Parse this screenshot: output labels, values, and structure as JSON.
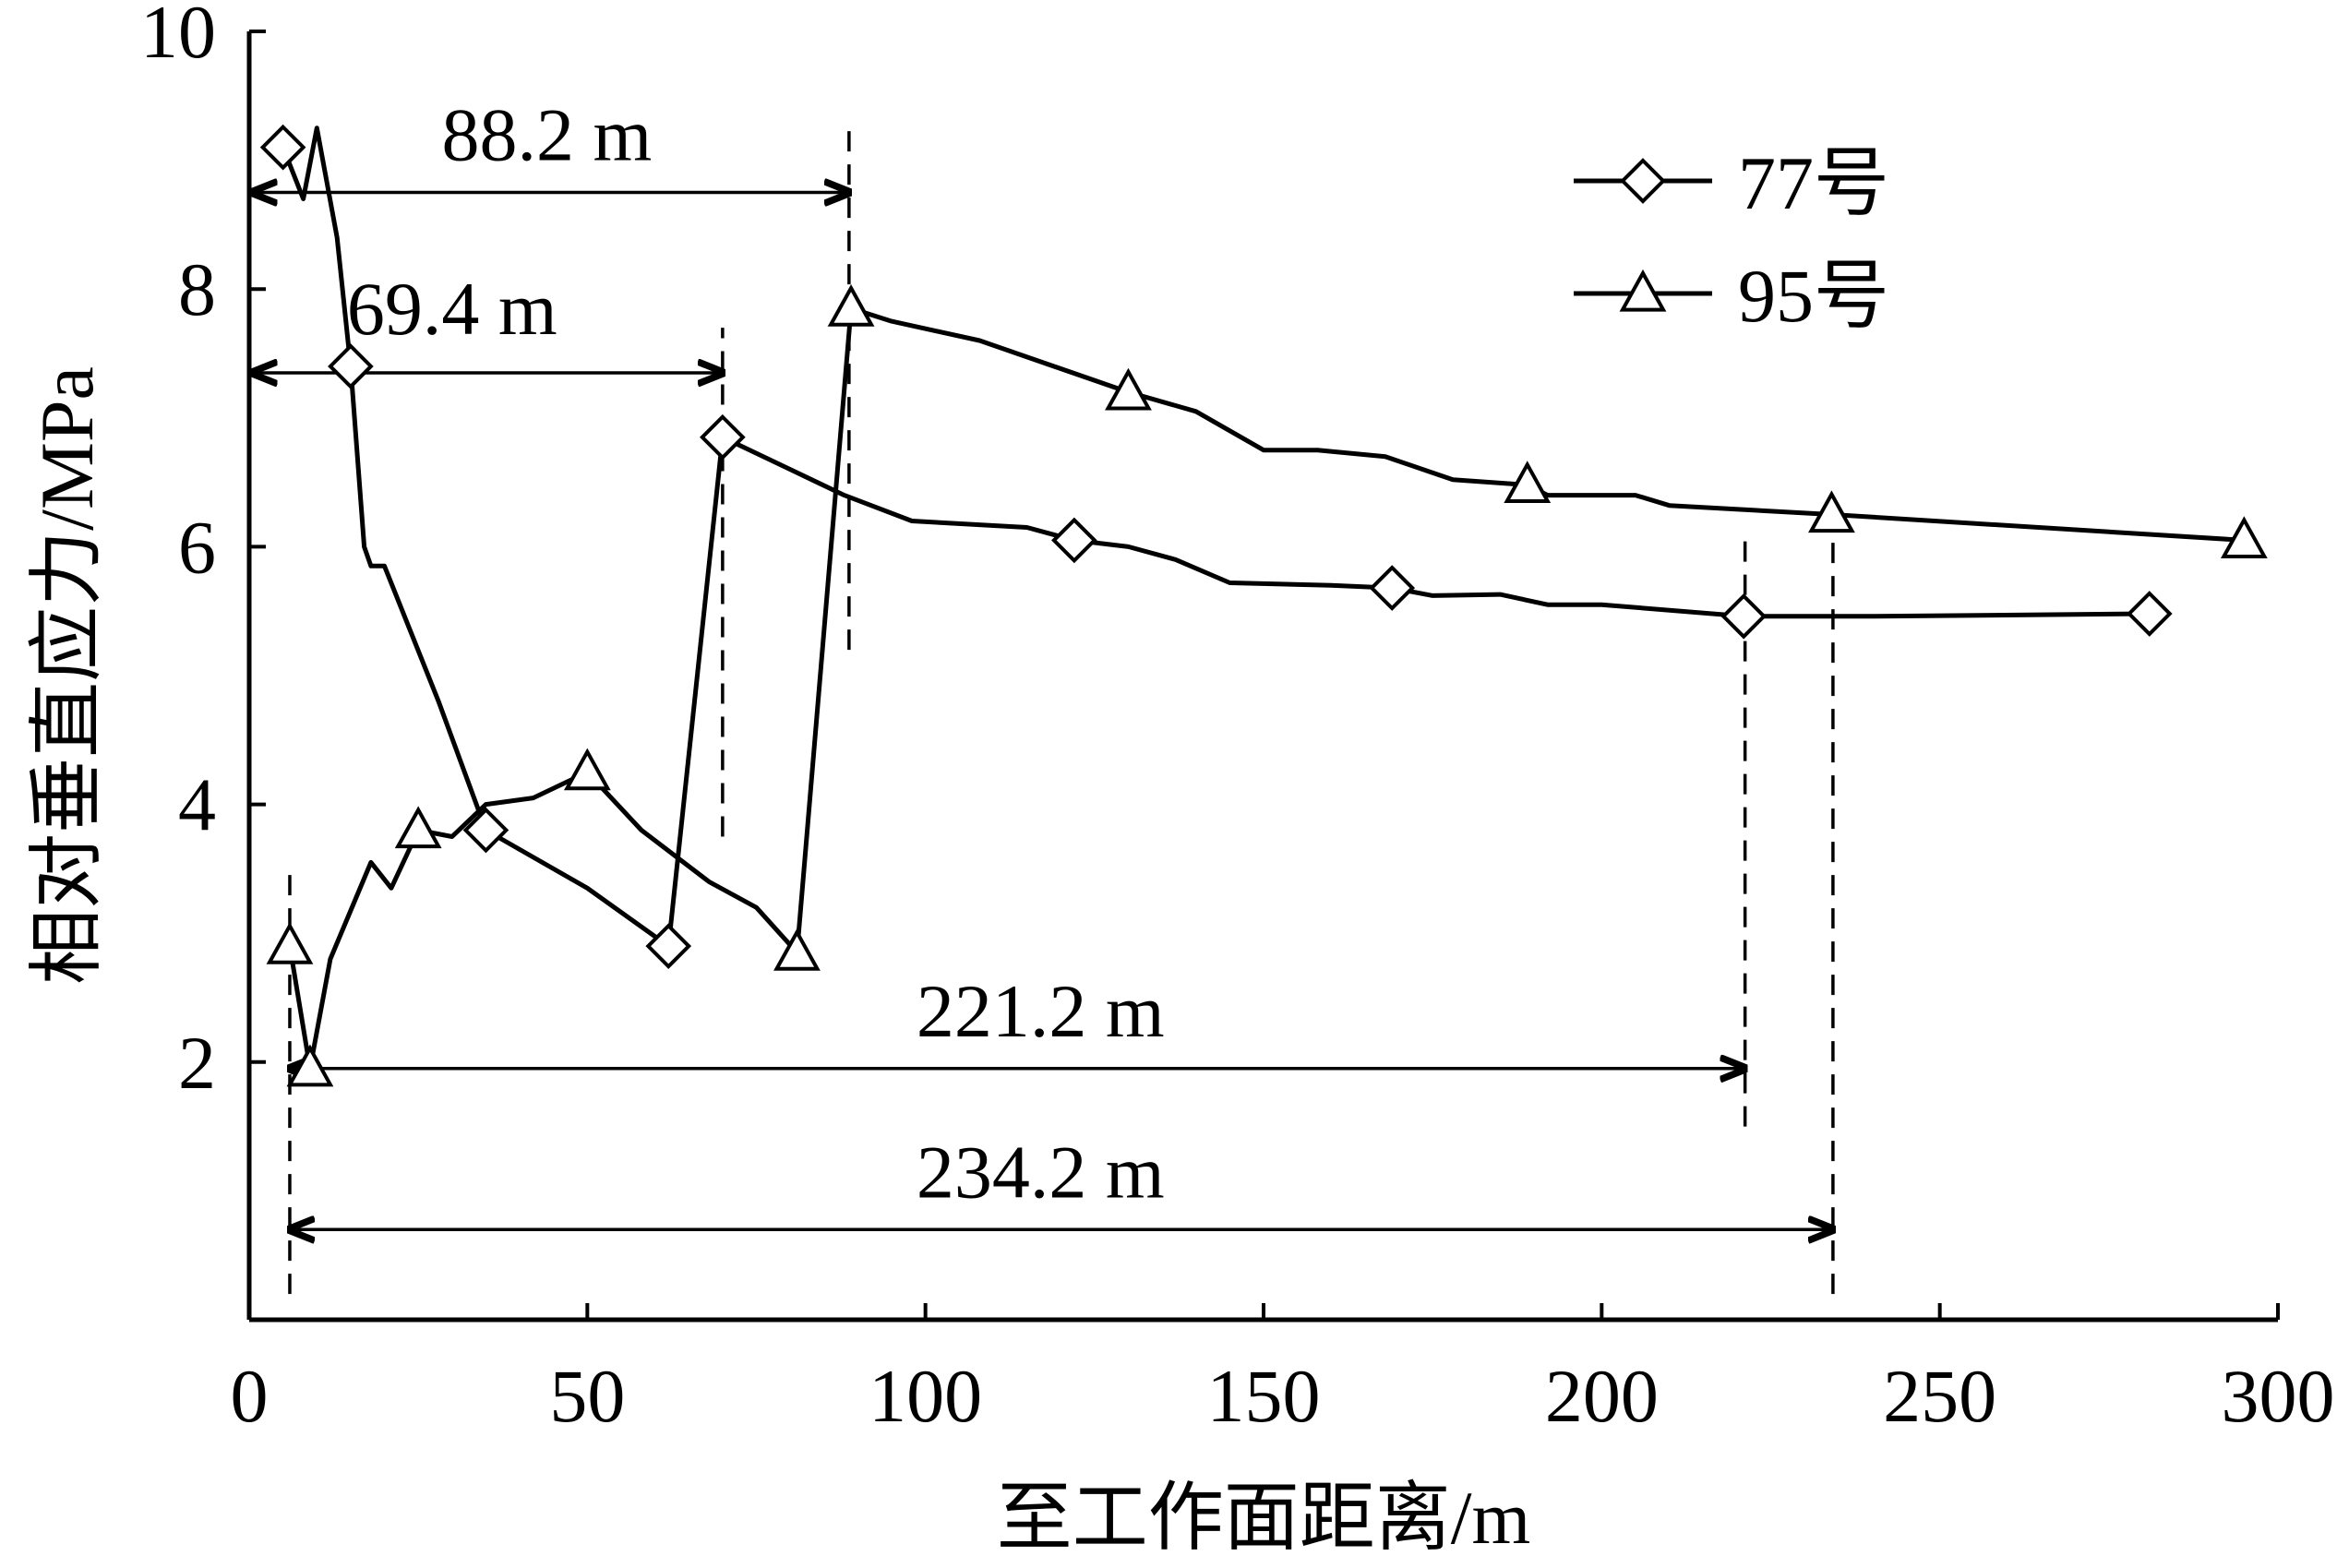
{
  "chart_data": {
    "type": "line",
    "xlabel": "至工作面距离/m",
    "ylabel": "相对垂直应力/MPa",
    "xlim": [
      0,
      300
    ],
    "ylim": [
      0,
      10
    ],
    "x_ticks": [
      0,
      50,
      100,
      150,
      200,
      250,
      300
    ],
    "y_ticks": [
      2,
      4,
      6,
      8,
      10
    ],
    "grid": false,
    "legend_position": "top-right",
    "series": [
      {
        "name": "77号",
        "marker": "diamond",
        "color": "#000000",
        "points": [
          [
            5,
            9.1
          ],
          [
            8,
            8.7
          ],
          [
            10,
            9.25
          ],
          [
            13,
            8.4
          ],
          [
            15,
            7.4
          ],
          [
            17,
            6.0
          ],
          [
            18,
            5.85
          ],
          [
            20,
            5.85
          ],
          [
            28,
            4.8
          ],
          [
            35,
            3.8
          ],
          [
            50,
            3.35
          ],
          [
            62,
            2.9
          ],
          [
            70,
            6.85
          ],
          [
            80,
            6.6
          ],
          [
            88,
            6.4
          ],
          [
            98,
            6.2
          ],
          [
            115,
            6.15
          ],
          [
            122,
            6.05
          ],
          [
            130,
            6.0
          ],
          [
            137,
            5.9
          ],
          [
            145,
            5.72
          ],
          [
            160,
            5.7
          ],
          [
            169,
            5.68
          ],
          [
            175,
            5.62
          ],
          [
            185,
            5.63
          ],
          [
            192,
            5.55
          ],
          [
            200,
            5.55
          ],
          [
            221,
            5.46
          ],
          [
            240,
            5.46
          ],
          [
            281,
            5.48
          ]
        ],
        "marker_points": [
          [
            5,
            9.1
          ],
          [
            15,
            7.4
          ],
          [
            35,
            3.8
          ],
          [
            62,
            2.9
          ],
          [
            70,
            6.85
          ],
          [
            122,
            6.05
          ],
          [
            169,
            5.68
          ],
          [
            221,
            5.46
          ],
          [
            281,
            5.48
          ]
        ]
      },
      {
        "name": "95号",
        "marker": "triangle",
        "color": "#000000",
        "points": [
          [
            6,
            2.9
          ],
          [
            9,
            1.95
          ],
          [
            12,
            2.8
          ],
          [
            18,
            3.55
          ],
          [
            21,
            3.35
          ],
          [
            25,
            3.8
          ],
          [
            30,
            3.75
          ],
          [
            35,
            4.0
          ],
          [
            42,
            4.05
          ],
          [
            50,
            4.25
          ],
          [
            58,
            3.8
          ],
          [
            68,
            3.4
          ],
          [
            75,
            3.2
          ],
          [
            81,
            2.85
          ],
          [
            89,
            7.85
          ],
          [
            95,
            7.75
          ],
          [
            108,
            7.6
          ],
          [
            130,
            7.2
          ],
          [
            140,
            7.05
          ],
          [
            150,
            6.75
          ],
          [
            158,
            6.75
          ],
          [
            168,
            6.7
          ],
          [
            178,
            6.52
          ],
          [
            189,
            6.48
          ],
          [
            192,
            6.4
          ],
          [
            205,
            6.4
          ],
          [
            210,
            6.32
          ],
          [
            234,
            6.25
          ],
          [
            295,
            6.05
          ]
        ],
        "marker_points": [
          [
            6,
            2.9
          ],
          [
            9,
            1.95
          ],
          [
            25,
            3.8
          ],
          [
            50,
            4.25
          ],
          [
            81,
            2.85
          ],
          [
            89,
            7.85
          ],
          [
            130,
            7.2
          ],
          [
            189,
            6.48
          ],
          [
            234,
            6.25
          ],
          [
            295,
            6.05
          ]
        ]
      }
    ],
    "dimension_annotations": [
      {
        "label": "88.2 m",
        "from_x": 0.5,
        "to_x": 88.7,
        "y": 8.75,
        "label_x": 44,
        "label_y": 9.2
      },
      {
        "label": "69.4 m",
        "from_x": 0.5,
        "to_x": 70,
        "y": 7.35,
        "label_x": 30,
        "label_y": 7.85
      },
      {
        "label": "221.2 m",
        "from_x": 6,
        "to_x": 221.2,
        "y": 1.95,
        "label_x": 117,
        "label_y": 2.4
      },
      {
        "label": "234.2 m",
        "from_x": 6,
        "to_x": 234.2,
        "y": 0.7,
        "label_x": 117,
        "label_y": 1.15
      }
    ],
    "dashed_guides": [
      {
        "x": 88.7,
        "y_from": 5.2,
        "y_to": 9.3
      },
      {
        "x": 70,
        "y_from": 3.75,
        "y_to": 7.7
      },
      {
        "x": 221.2,
        "y_from": 1.5,
        "y_to": 6.05
      },
      {
        "x": 234.2,
        "y_from": 0.2,
        "y_to": 6.05
      },
      {
        "x": 6,
        "y_from": 0.2,
        "y_to": 3.5
      }
    ]
  }
}
